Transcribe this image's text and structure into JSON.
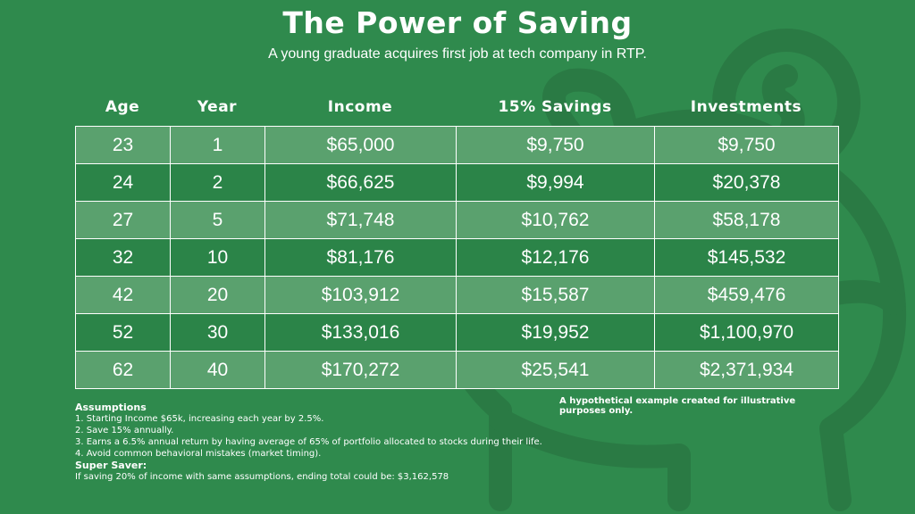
{
  "title": "The Power of Saving",
  "subtitle": "A young graduate acquires first job at tech company in RTP.",
  "columns": [
    "Age",
    "Year",
    "Income",
    "15% Savings",
    "Investments"
  ],
  "rows": [
    [
      "23",
      "1",
      "$65,000",
      "$9,750",
      "$9,750"
    ],
    [
      "24",
      "2",
      "$66,625",
      "$9,994",
      "$20,378"
    ],
    [
      "27",
      "5",
      "$71,748",
      "$10,762",
      "$58,178"
    ],
    [
      "32",
      "10",
      "$81,176",
      "$12,176",
      "$145,532"
    ],
    [
      "42",
      "20",
      "$103,912",
      "$15,587",
      "$459,476"
    ],
    [
      "52",
      "30",
      "$133,016",
      "$19,952",
      "$1,100,970"
    ],
    [
      "62",
      "40",
      "$170,272",
      "$25,541",
      "$2,371,934"
    ]
  ],
  "disclaimer": "A hypothetical example created for illustrative purposes only.",
  "assumptions": {
    "heading": "Assumptions",
    "items": [
      "1. Starting Income $65k, increasing each year by 2.5%.",
      "2. Save 15% annually.",
      "3. Earns a 6.5% annual return by having average of 65% of portfolio allocated to stocks during their life.",
      "4. Avoid common behavioral mistakes (market timing)."
    ]
  },
  "super_saver": {
    "heading": "Super Saver:",
    "text": "If saving 20% of income with same assumptions, ending total could be: $3,162,578"
  },
  "colors": {
    "background": "#2f8a4d",
    "row_light": "#5aa16e",
    "row_dark": "#2b8448",
    "text": "#ffffff"
  },
  "background_icon": "piggy-bank-icon"
}
